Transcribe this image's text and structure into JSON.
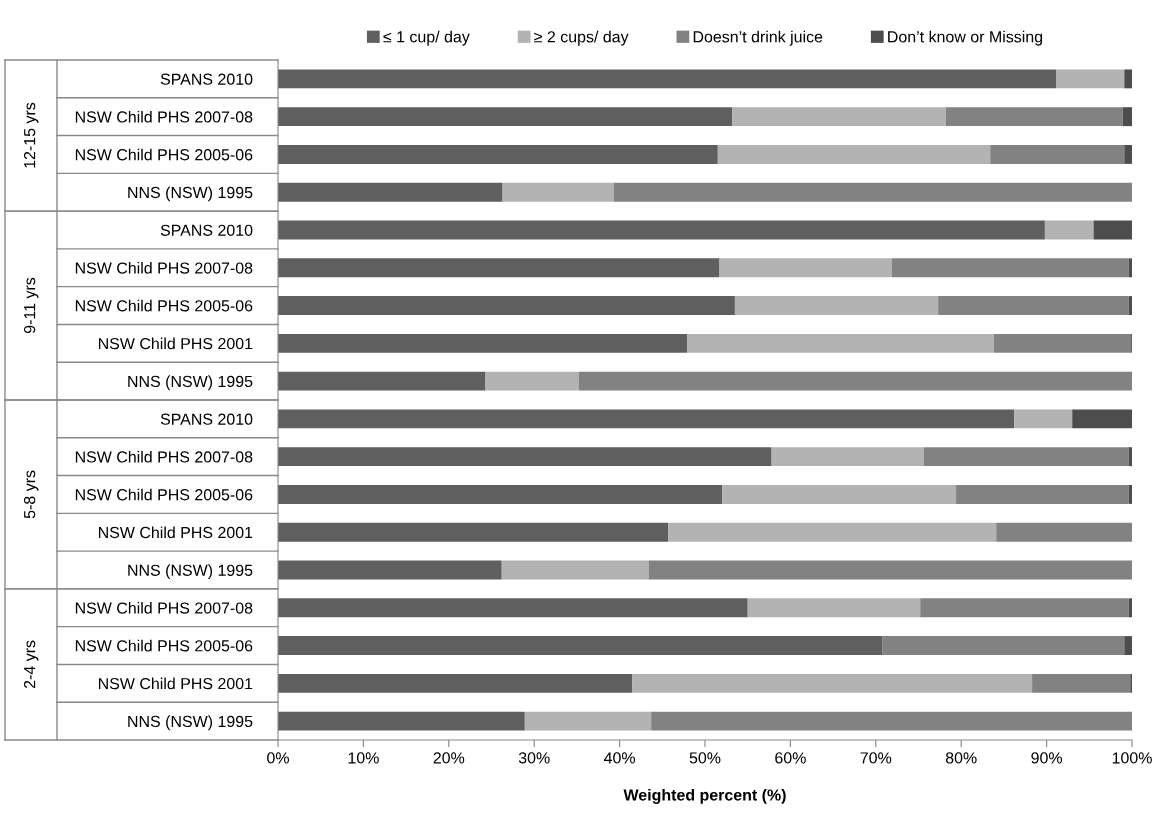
{
  "chart_data": {
    "type": "bar",
    "orientation": "horizontal",
    "stacked": true,
    "xlabel": "Weighted percent (%)",
    "categories": [
      "SPANS 2010",
      "NSW Child PHS 2007-08",
      "NSW Child PHS 2005-06",
      "NNS (NSW) 1995",
      "SPANS 2010",
      "NSW Child PHS 2007-08",
      "NSW Child PHS 2005-06",
      "NSW Child PHS 2001",
      "NNS (NSW) 1995",
      "SPANS 2010",
      "NSW Child PHS 2007-08",
      "NSW Child PHS 2005-06",
      "NSW Child PHS 2001",
      "NNS (NSW) 1995",
      "NSW Child PHS 2007-08",
      "NSW Child PHS 2005-06",
      "NSW Child PHS 2001",
      "NNS (NSW) 1995"
    ],
    "series": [
      {
        "name": "≤ 1 cup/ day",
        "color": "#5f5f5f",
        "values": [
          91.1,
          53.2,
          51.5,
          26.3,
          89.8,
          51.7,
          53.5,
          47.9,
          24.3,
          86.2,
          57.8,
          52.0,
          45.7,
          26.2,
          55.0,
          70.8,
          41.5,
          28.9
        ]
      },
      {
        "name": "≥ 2 cups/ day",
        "color": "#b3b3b3",
        "values": [
          8.0,
          25.0,
          31.9,
          13.0,
          5.7,
          20.2,
          23.8,
          35.9,
          10.9,
          6.8,
          17.8,
          27.4,
          38.4,
          17.2,
          20.2,
          0,
          46.8,
          14.8
        ]
      },
      {
        "name": "Doesn’t drink juice",
        "color": "#828282",
        "values": [
          0,
          20.7,
          15.7,
          60.7,
          0,
          27.7,
          22.3,
          16.1,
          64.8,
          0,
          24.0,
          20.2,
          15.9,
          56.6,
          24.4,
          28.3,
          11.5,
          56.3
        ]
      },
      {
        "name": "Don’t know or Missing",
        "color": "#4d4d4d",
        "values": [
          0.9,
          1.1,
          0.9,
          0,
          4.5,
          0.4,
          0.4,
          0.1,
          0,
          7.0,
          0.4,
          0.4,
          0,
          0,
          0.4,
          0.9,
          0.2,
          0
        ]
      }
    ],
    "xlim": [
      0,
      100
    ],
    "xticks": [
      {
        "value": 0,
        "label": "0%"
      },
      {
        "value": 10,
        "label": "10%"
      },
      {
        "value": 20,
        "label": "20%"
      },
      {
        "value": 30,
        "label": "30%"
      },
      {
        "value": 40,
        "label": "40%"
      },
      {
        "value": 50,
        "label": "50%"
      },
      {
        "value": 60,
        "label": "60%"
      },
      {
        "value": 70,
        "label": "70%"
      },
      {
        "value": 80,
        "label": "80%"
      },
      {
        "value": 90,
        "label": "90%"
      },
      {
        "value": 100,
        "label": "100%"
      }
    ],
    "annotations": [
      "12-15 yrs",
      "9-11 yrs",
      "5-8 yrs",
      "2-4 yrs"
    ],
    "legend": "top",
    "grid": false
  }
}
